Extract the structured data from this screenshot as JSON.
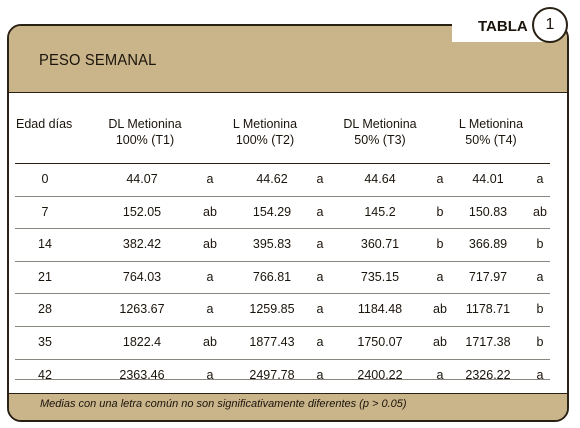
{
  "header": {
    "title": "PESO SEMANAL",
    "tag_label": "TABLA",
    "tag_number": "1"
  },
  "table": {
    "columns": [
      "Edad días",
      "DL Metionina\n100% (T1)",
      "L Metionina\n100% (T2)",
      "DL Metionina\n50% (T3)",
      "L Metionina\n50% (T4)"
    ],
    "rows": [
      [
        "0",
        "44.07",
        "a",
        "44.62",
        "a",
        "44.64",
        "a",
        "44.01",
        "a"
      ],
      [
        "7",
        "152.05",
        "ab",
        "154.29",
        "a",
        "145.2",
        "b",
        "150.83",
        "ab"
      ],
      [
        "14",
        "382.42",
        "ab",
        "395.83",
        "a",
        "360.71",
        "b",
        "366.89",
        "b"
      ],
      [
        "21",
        "764.03",
        "a",
        "766.81",
        "a",
        "735.15",
        "a",
        "717.97",
        "a"
      ],
      [
        "28",
        "1263.67",
        "a",
        "1259.85",
        "a",
        "1184.48",
        "ab",
        "1178.71",
        "b"
      ],
      [
        "35",
        "1822.4",
        "ab",
        "1877.43",
        "a",
        "1750.07",
        "ab",
        "1717.38",
        "b"
      ],
      [
        "42",
        "2363.46",
        "a",
        "2497.78",
        "a",
        "2400.22",
        "a",
        "2326.22",
        "a"
      ]
    ]
  },
  "footer": {
    "note": "Medias con una letra común no son significativamente diferentes (p > 0.05)"
  }
}
